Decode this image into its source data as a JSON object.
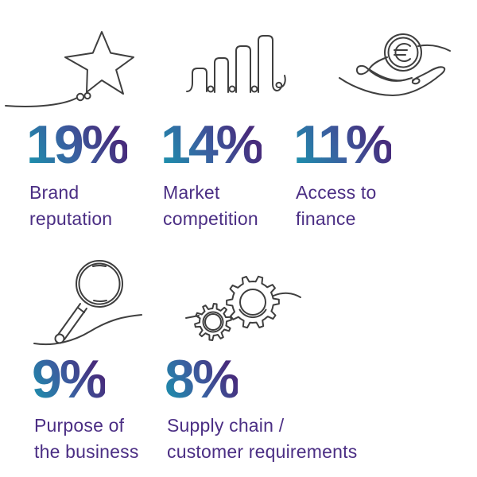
{
  "items": [
    {
      "icon": "star-icon",
      "value": "19%",
      "label_line1": "Brand",
      "label_line2": "reputation"
    },
    {
      "icon": "bar-chart-icon",
      "value": "14%",
      "label_line1": "Market",
      "label_line2": "competition"
    },
    {
      "icon": "hand-euro-coin-icon",
      "value": "11%",
      "label_line1": "Access to",
      "label_line2": "finance"
    },
    {
      "icon": "magnifying-glass-icon",
      "value": "9%",
      "label_line1": "Purpose of",
      "label_line2": "the business"
    },
    {
      "icon": "gears-icon",
      "value": "8%",
      "label_line1": "Supply chain /",
      "label_line2": "customer requirements"
    }
  ],
  "colors": {
    "background": "#ffffff",
    "icon_stroke": "#3f3f3f",
    "label_text": "#4b2e84",
    "value_gradient_start": "#1897ae",
    "value_gradient_mid": "#3a5fa0",
    "value_gradient_end": "#472c7c"
  },
  "chart_data": {
    "type": "bar",
    "title": "",
    "categories": [
      "Brand reputation",
      "Market competition",
      "Access to finance",
      "Purpose of the business",
      "Supply chain / customer requirements"
    ],
    "values": [
      19,
      14,
      11,
      9,
      8
    ],
    "unit": "%",
    "legend": false,
    "style": "infographic percentage cards with continuous-line icons"
  }
}
